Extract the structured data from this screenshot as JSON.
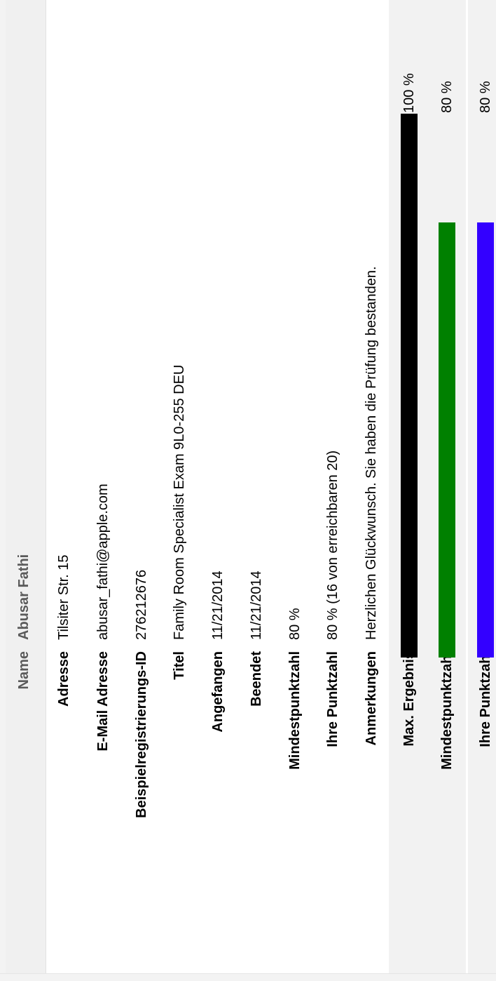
{
  "header": {
    "name_label": "Name",
    "name_value": "Abusar Fathi"
  },
  "fields": [
    {
      "label": "Adresse",
      "value": "Tilsiter Str. 15"
    },
    {
      "label": "E-Mail Adresse",
      "value": "abusar_fathi@apple.com"
    },
    {
      "label": "Beispielregistrierungs-ID",
      "value": "276212676"
    },
    {
      "label": "Titel",
      "value": "Family Room Specialist Exam 9L0-255 DEU"
    },
    {
      "label": "Angefangen",
      "value": "11/21/2014"
    },
    {
      "label": "Beendet",
      "value": "11/21/2014"
    },
    {
      "label": "Mindestpunktzahl",
      "value": "80 %"
    },
    {
      "label": "Ihre Punktzahl",
      "value": "80 % (16 von erreichbaren 20)"
    },
    {
      "label": "Anmerkungen",
      "value": "Herzlichen Glückwunsch. Sie haben die Prüfung bestanden."
    }
  ],
  "score_bars": [
    {
      "label": "Max. Ergebnis",
      "percent": 100,
      "percent_text": "100 %",
      "color": "#000000"
    },
    {
      "label": "Mindestpunktzahl",
      "percent": 80,
      "percent_text": "80 %",
      "color": "#008000"
    },
    {
      "label": "Ihre Punktzahl",
      "percent": 80,
      "percent_text": "80 %",
      "color": "#3300ff"
    }
  ]
}
